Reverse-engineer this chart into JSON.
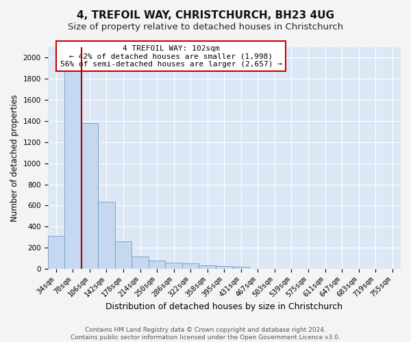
{
  "title1": "4, TREFOIL WAY, CHRISTCHURCH, BH23 4UG",
  "title2": "Size of property relative to detached houses in Christchurch",
  "xlabel": "Distribution of detached houses by size in Christchurch",
  "ylabel": "Number of detached properties",
  "categories": [
    "34sqm",
    "70sqm",
    "106sqm",
    "142sqm",
    "178sqm",
    "214sqm",
    "250sqm",
    "286sqm",
    "322sqm",
    "358sqm",
    "395sqm",
    "431sqm",
    "467sqm",
    "503sqm",
    "539sqm",
    "575sqm",
    "611sqm",
    "647sqm",
    "683sqm",
    "719sqm",
    "755sqm"
  ],
  "values": [
    310,
    1950,
    1380,
    635,
    260,
    115,
    80,
    58,
    50,
    32,
    28,
    18,
    0,
    0,
    0,
    0,
    0,
    0,
    0,
    0,
    0
  ],
  "bar_color": "#c5d8ef",
  "bar_edge_color": "#6b9dc8",
  "background_color": "#dce8f5",
  "grid_color": "#ffffff",
  "figure_bg": "#f4f4f4",
  "vline_x": 1.5,
  "vline_color": "#aa0000",
  "annotation_text": "4 TREFOIL WAY: 102sqm\n← 42% of detached houses are smaller (1,998)\n56% of semi-detached houses are larger (2,657) →",
  "annotation_box_facecolor": "#ffffff",
  "annotation_box_edge": "#cc0000",
  "ylim": [
    0,
    2100
  ],
  "yticks": [
    0,
    200,
    400,
    600,
    800,
    1000,
    1200,
    1400,
    1600,
    1800,
    2000
  ],
  "footer1": "Contains HM Land Registry data © Crown copyright and database right 2024.",
  "footer2": "Contains public sector information licensed under the Open Government Licence v3.0.",
  "title1_fontsize": 11,
  "title2_fontsize": 9.5,
  "xlabel_fontsize": 9,
  "ylabel_fontsize": 8.5,
  "tick_fontsize": 7.5,
  "annotation_fontsize": 8,
  "footer_fontsize": 6.5
}
